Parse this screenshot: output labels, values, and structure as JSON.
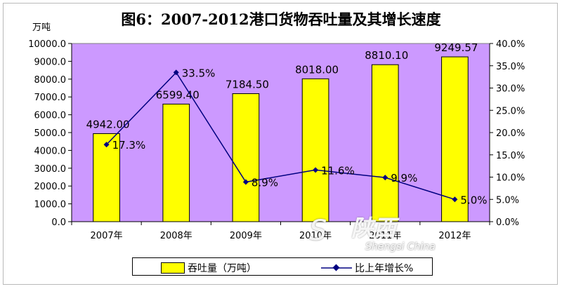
{
  "chart_data": {
    "type": "bar",
    "title": "图6：2007-2012港口货物吞吐量及其增长速度",
    "unit_left": "万吨",
    "categories": [
      "2007年",
      "2008年",
      "2009年",
      "2010年",
      "2011年",
      "2012年"
    ],
    "series": [
      {
        "name": "吞吐量（万吨）",
        "type": "bar",
        "axis": "left",
        "values": [
          4942.0,
          6599.4,
          7184.5,
          8018.0,
          8810.1,
          9249.57
        ],
        "labels": [
          "4942.00",
          "6599.40",
          "7184.50",
          "8018.00",
          "8810.10",
          "9249.57"
        ],
        "color": "#ffff00"
      },
      {
        "name": "比上年增长%",
        "type": "line",
        "axis": "right",
        "values": [
          17.3,
          33.5,
          8.9,
          11.6,
          9.9,
          5.0
        ],
        "labels": [
          "17.3%",
          "33.5%",
          "8.9%",
          "11.6%",
          "9.9%",
          "5.0%"
        ],
        "color": "#000080"
      }
    ],
    "ylim_left": [
      0,
      10000
    ],
    "ylim_right": [
      0,
      40
    ],
    "yticks_left": [
      "0.0",
      "1000.0",
      "2000.0",
      "3000.0",
      "4000.0",
      "5000.0",
      "6000.0",
      "7000.0",
      "8000.0",
      "9000.0",
      "10000.0"
    ],
    "yticks_right": [
      "0.0%",
      "5.0%",
      "10.0%",
      "15.0%",
      "20.0%",
      "25.0%",
      "30.0%",
      "35.0%",
      "40.0%"
    ],
    "plot_background": "#cc99ff",
    "legend_position": "bottom"
  },
  "watermark": {
    "cn": "陕西",
    "en": "Shengsi China",
    "swirl": "S"
  }
}
